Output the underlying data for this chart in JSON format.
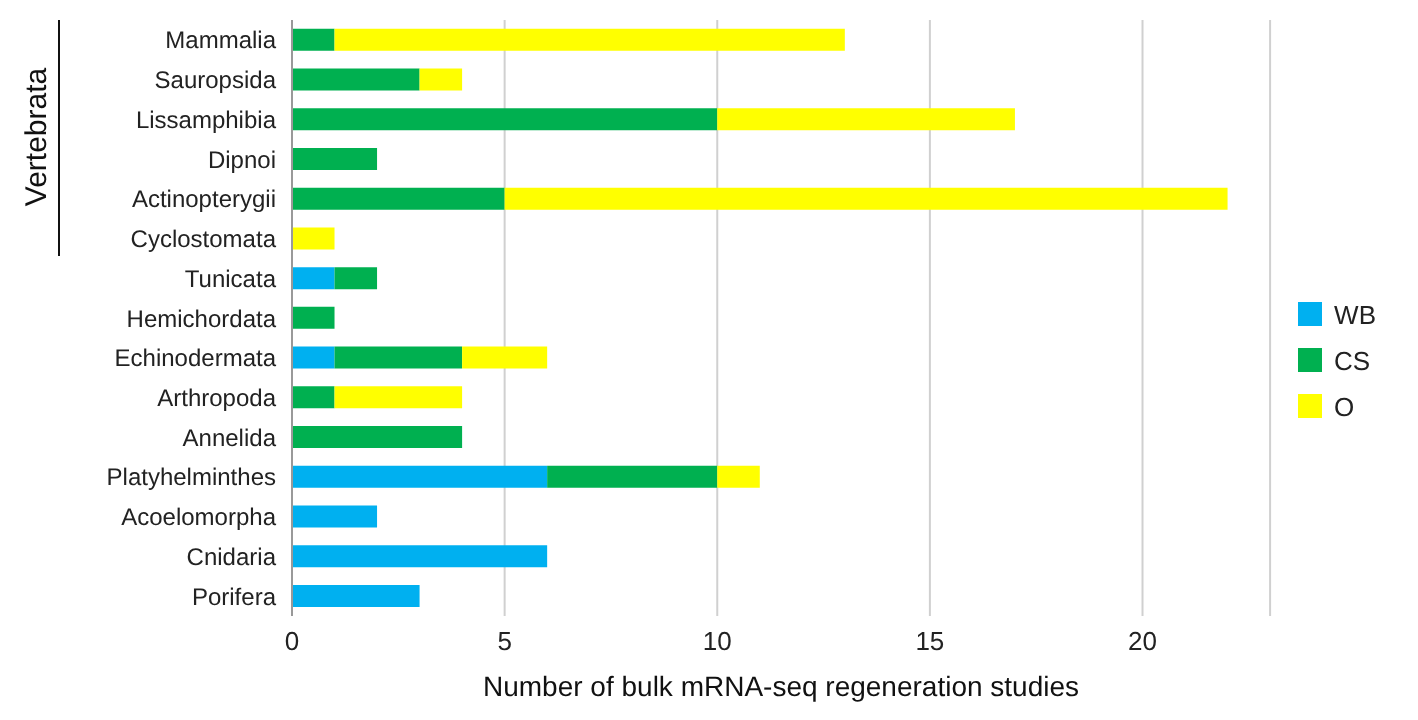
{
  "chart_data": {
    "type": "bar",
    "orientation": "horizontal",
    "stacked": true,
    "categories": [
      "Mammalia",
      "Sauropsida",
      "Lissamphibia",
      "Dipnoi",
      "Actinopterygii",
      "Cyclostomata",
      "Tunicata",
      "Hemichordata",
      "Echinodermata",
      "Arthropoda",
      "Annelida",
      "Platyhelminthes",
      "Acoelomorpha",
      "Cnidaria",
      "Porifera"
    ],
    "series": [
      {
        "name": "WB",
        "color": "#00b0f0",
        "values": [
          0,
          0,
          0,
          0,
          0,
          0,
          1,
          0,
          1,
          0,
          0,
          6,
          2,
          6,
          3
        ]
      },
      {
        "name": "CS",
        "color": "#00b050",
        "values": [
          1,
          3,
          10,
          2,
          5,
          0,
          1,
          1,
          3,
          1,
          4,
          4,
          0,
          0,
          0
        ]
      },
      {
        "name": "O",
        "color": "#ffff00",
        "values": [
          12,
          1,
          7,
          0,
          17,
          1,
          0,
          0,
          2,
          3,
          0,
          1,
          0,
          0,
          0
        ]
      }
    ],
    "xlim": [
      0,
      23
    ],
    "xticks": [
      0,
      5,
      10,
      15,
      20
    ],
    "xlabel": "Number of bulk mRNA-seq regeneration  studies",
    "annotations": [
      "Vertebrata"
    ],
    "grid": "x",
    "legend": "right"
  }
}
